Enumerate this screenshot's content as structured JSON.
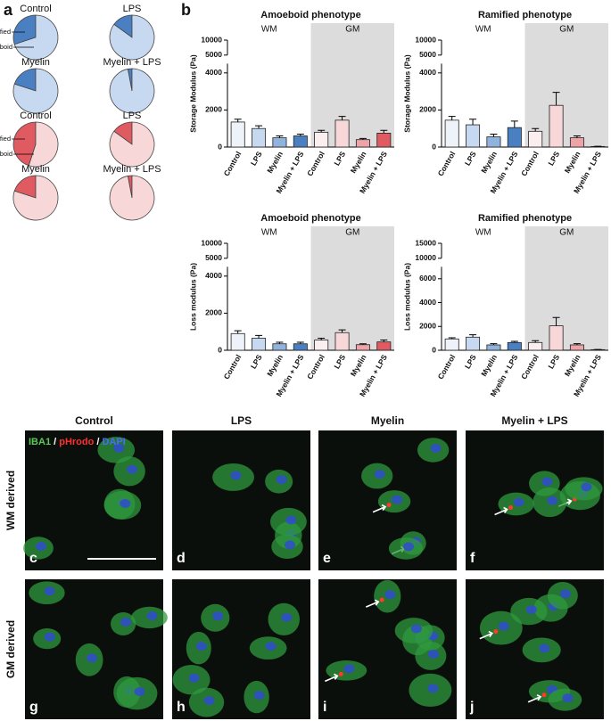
{
  "chart_data": [
    {
      "type": "pie",
      "title": "Control",
      "categories": [
        "ramified",
        "amoeboid"
      ],
      "values": [
        30,
        70
      ],
      "colors": [
        "#4a7fc1",
        "#c6d9f0"
      ]
    },
    {
      "type": "pie",
      "title": "LPS",
      "categories": [
        null,
        null
      ],
      "values": [
        15,
        85
      ],
      "colors": [
        "#4a7fc1",
        "#c6d9f0"
      ]
    },
    {
      "type": "pie",
      "title": "Myelin",
      "categories": [
        null,
        null
      ],
      "values": [
        20,
        80
      ],
      "colors": [
        "#4a7fc1",
        "#c6d9f0"
      ]
    },
    {
      "type": "pie",
      "title": "Myelin + LPS",
      "categories": [
        null,
        null
      ],
      "values": [
        3,
        97
      ],
      "colors": [
        "#4a7fc1",
        "#c6d9f0"
      ]
    },
    {
      "type": "pie",
      "title": "Control",
      "categories": [
        "ramified",
        "amoeboid"
      ],
      "values": [
        45,
        55
      ],
      "colors": [
        "#e05a62",
        "#f8d7d8"
      ]
    },
    {
      "type": "pie",
      "title": "LPS",
      "categories": [
        null,
        null
      ],
      "values": [
        15,
        85
      ],
      "colors": [
        "#e05a62",
        "#f8d7d8"
      ]
    },
    {
      "type": "pie",
      "title": "Myelin",
      "categories": [
        null,
        null
      ],
      "values": [
        20,
        80
      ],
      "colors": [
        "#e05a62",
        "#f8d7d8"
      ]
    },
    {
      "type": "pie",
      "title": "Myelin + LPS",
      "categories": [
        null,
        null
      ],
      "values": [
        3,
        97
      ],
      "colors": [
        "#e05a62",
        "#f8d7d8"
      ]
    },
    {
      "type": "bar",
      "title": "Amoeboid phenotype",
      "y_label": "Storage Modulus (Pa)",
      "categories": [
        "Control",
        "LPS",
        "Myelin",
        "Myelin + LPS",
        "Control",
        "LPS",
        "Myelin",
        "Myelin + LPS"
      ],
      "values": [
        1350,
        1000,
        500,
        600,
        800,
        1450,
        400,
        750
      ],
      "errors": [
        150,
        150,
        100,
        100,
        100,
        200,
        60,
        150
      ],
      "colors": [
        "#eef3fa",
        "#c6d9f0",
        "#8fb3dd",
        "#4a7fc1",
        "#fbeeee",
        "#f8d7d8",
        "#eea3a7",
        "#e05a62"
      ],
      "ylim": [
        0,
        10000
      ],
      "ybreak": [
        4500,
        5000
      ],
      "yticks": [
        0,
        2000,
        4000,
        5000,
        10000
      ],
      "groups": [
        {
          "label": "WM",
          "size": 4,
          "shaded": false
        },
        {
          "label": "GM",
          "size": 4,
          "shaded": true
        }
      ]
    },
    {
      "type": "bar",
      "title": "Ramified phenotype",
      "y_label": "Storage Modulus (Pa)",
      "categories": [
        "Control",
        "LPS",
        "Myelin",
        "Myelin + LPS",
        "Control",
        "LPS",
        "Myelin",
        "Myelin + LPS"
      ],
      "values": [
        1450,
        1200,
        550,
        1050,
        850,
        2250,
        500,
        30
      ],
      "errors": [
        200,
        300,
        150,
        350,
        150,
        700,
        100,
        10
      ],
      "colors": [
        "#eef3fa",
        "#c6d9f0",
        "#8fb3dd",
        "#4a7fc1",
        "#fbeeee",
        "#f8d7d8",
        "#eea3a7",
        "#e05a62"
      ],
      "ylim": [
        0,
        10000
      ],
      "ybreak": [
        4500,
        5000
      ],
      "yticks": [
        0,
        2000,
        4000,
        5000,
        10000
      ],
      "groups": [
        {
          "label": "WM",
          "size": 4,
          "shaded": false
        },
        {
          "label": "GM",
          "size": 4,
          "shaded": true
        }
      ]
    },
    {
      "type": "bar",
      "title": "Amoeboid phenotype",
      "y_label": "Loss modulus (Pa)",
      "categories": [
        "Control",
        "LPS",
        "Myelin",
        "Myelin + LPS",
        "Control",
        "LPS",
        "Myelin",
        "Myelin + LPS"
      ],
      "values": [
        900,
        650,
        350,
        350,
        550,
        950,
        300,
        450
      ],
      "errors": [
        150,
        150,
        80,
        80,
        100,
        150,
        50,
        100
      ],
      "colors": [
        "#eef3fa",
        "#c6d9f0",
        "#8fb3dd",
        "#4a7fc1",
        "#fbeeee",
        "#f8d7d8",
        "#eea3a7",
        "#e05a62"
      ],
      "ylim": [
        0,
        10000
      ],
      "ybreak": [
        4500,
        5000
      ],
      "yticks": [
        0,
        2000,
        4000,
        5000,
        10000
      ],
      "groups": [
        {
          "label": "WM",
          "size": 4,
          "shaded": false
        },
        {
          "label": "GM",
          "size": 4,
          "shaded": true
        }
      ]
    },
    {
      "type": "bar",
      "title": "Ramified phenotype",
      "y_label": "Loss modulus (Pa)",
      "categories": [
        "Control",
        "LPS",
        "Myelin",
        "Myelin + LPS",
        "Control",
        "LPS",
        "Myelin",
        "Myelin + LPS"
      ],
      "values": [
        950,
        1100,
        450,
        650,
        650,
        2050,
        450,
        50
      ],
      "errors": [
        100,
        200,
        100,
        100,
        150,
        700,
        100,
        20
      ],
      "colors": [
        "#eef3fa",
        "#c6d9f0",
        "#8fb3dd",
        "#4a7fc1",
        "#fbeeee",
        "#f8d7d8",
        "#eea3a7",
        "#e05a62"
      ],
      "ylim": [
        0,
        15000
      ],
      "ybreak": [
        7000,
        10000
      ],
      "yticks": [
        0,
        2000,
        4000,
        6000,
        10000,
        15000
      ],
      "groups": [
        {
          "label": "WM",
          "size": 4,
          "shaded": false
        },
        {
          "label": "GM",
          "size": 4,
          "shaded": true
        }
      ]
    }
  ],
  "panel_labels": [
    "a",
    "b"
  ],
  "micrographs": {
    "columns": [
      "Control",
      "LPS",
      "Myelin",
      "Myelin + LPS"
    ],
    "rows": [
      "WM derived",
      "GM derived"
    ],
    "letters": [
      "c",
      "d",
      "e",
      "f",
      "g",
      "h",
      "i",
      "j"
    ],
    "stain": [
      {
        "text": "IBA1",
        "color": "#5cc85c"
      },
      {
        "text": " / ",
        "color": "#ffffff"
      },
      {
        "text": "pHrodo",
        "color": "#ff3030"
      },
      {
        "text": " / ",
        "color": "#ffffff"
      },
      {
        "text": "DAPI",
        "color": "#4a6cff"
      }
    ]
  }
}
